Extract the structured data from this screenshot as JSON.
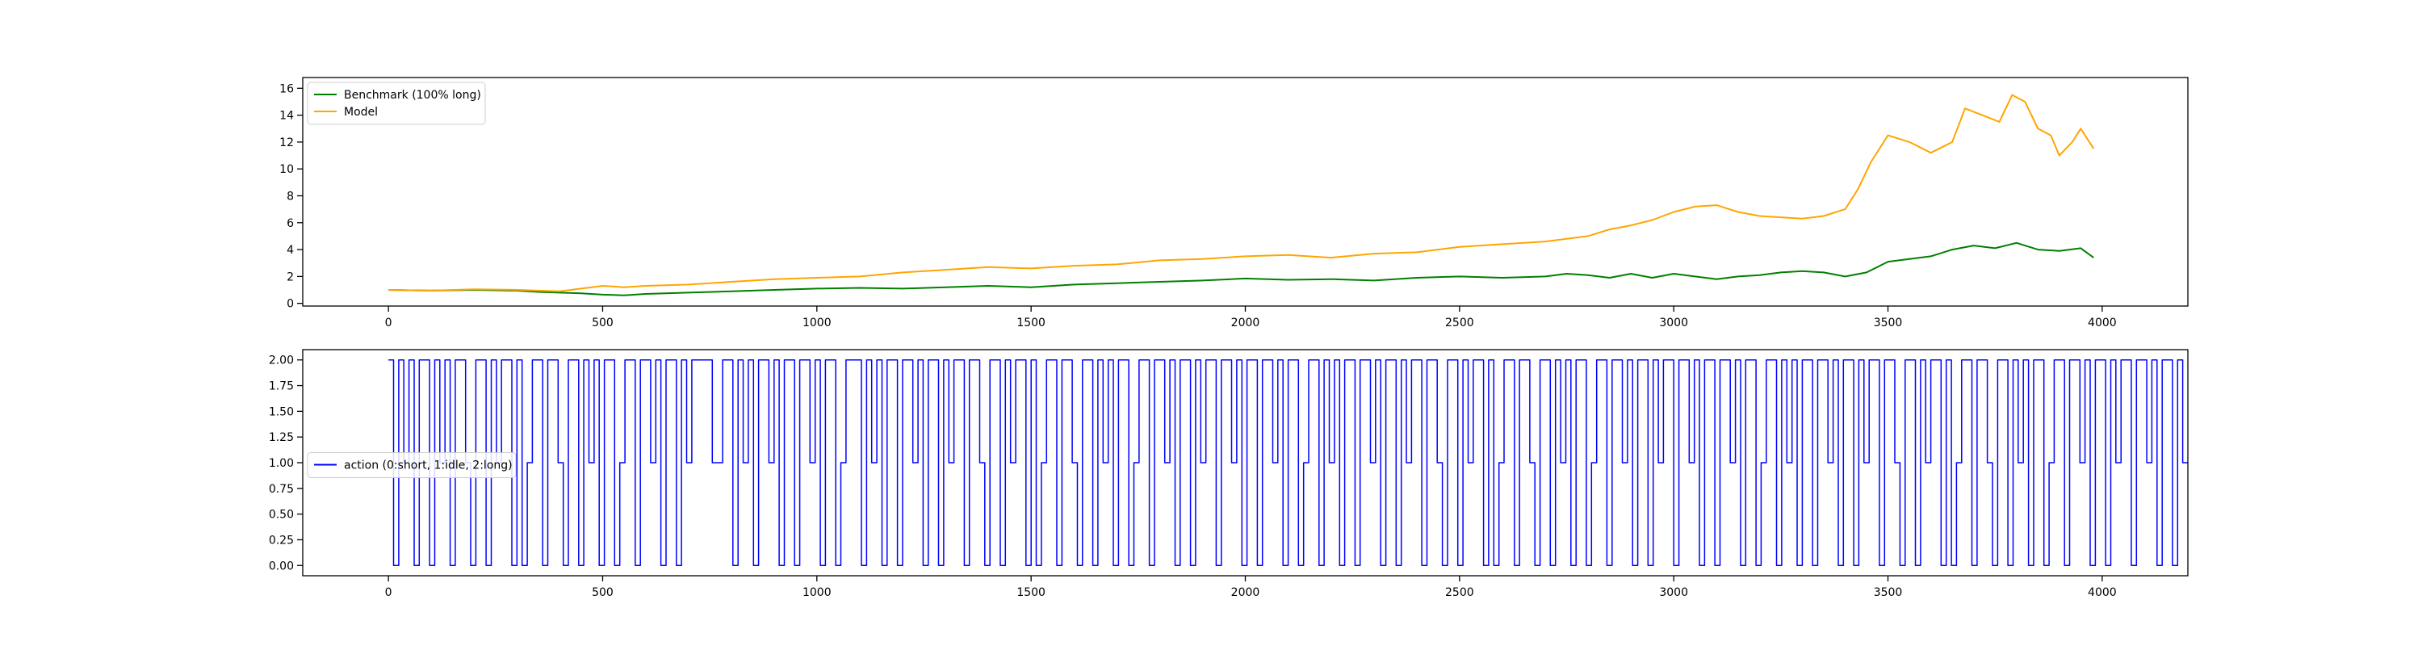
{
  "chart_data": [
    {
      "type": "line",
      "title": "",
      "xlabel": "",
      "ylabel": "",
      "xlim": [
        -200,
        4200
      ],
      "ylim": [
        -0.2,
        16.8
      ],
      "xticks": [
        0,
        500,
        1000,
        1500,
        2000,
        2500,
        3000,
        3500,
        4000
      ],
      "yticks": [
        0,
        2,
        4,
        6,
        8,
        10,
        12,
        14,
        16
      ],
      "legend": {
        "placement": "upper-left"
      },
      "grid": false,
      "series": [
        {
          "name": "Benchmark (100% long)",
          "color": "#008000",
          "x": [
            0,
            100,
            200,
            300,
            350,
            400,
            450,
            500,
            550,
            600,
            700,
            800,
            900,
            1000,
            1100,
            1200,
            1300,
            1400,
            1500,
            1600,
            1700,
            1800,
            1900,
            2000,
            2100,
            2200,
            2300,
            2400,
            2500,
            2600,
            2700,
            2750,
            2800,
            2850,
            2900,
            2950,
            3000,
            3050,
            3100,
            3150,
            3200,
            3250,
            3300,
            3350,
            3400,
            3450,
            3500,
            3550,
            3600,
            3650,
            3700,
            3750,
            3800,
            3850,
            3900,
            3950,
            3980
          ],
          "y": [
            1.0,
            0.95,
            1.0,
            0.95,
            0.85,
            0.8,
            0.75,
            0.65,
            0.6,
            0.7,
            0.8,
            0.9,
            1.0,
            1.1,
            1.15,
            1.1,
            1.2,
            1.3,
            1.2,
            1.4,
            1.5,
            1.6,
            1.7,
            1.85,
            1.75,
            1.8,
            1.7,
            1.9,
            2.0,
            1.9,
            2.0,
            2.2,
            2.1,
            1.9,
            2.2,
            1.9,
            2.2,
            2.0,
            1.8,
            2.0,
            2.1,
            2.3,
            2.4,
            2.3,
            2.0,
            2.3,
            3.1,
            3.3,
            3.5,
            4.0,
            4.3,
            4.1,
            4.5,
            4.0,
            3.9,
            4.1,
            3.4
          ]
        },
        {
          "name": "Model",
          "color": "#ffa500",
          "x": [
            0,
            100,
            200,
            300,
            400,
            450,
            500,
            550,
            600,
            700,
            800,
            900,
            1000,
            1100,
            1200,
            1300,
            1400,
            1500,
            1600,
            1700,
            1800,
            1900,
            2000,
            2100,
            2200,
            2300,
            2400,
            2500,
            2600,
            2700,
            2750,
            2800,
            2850,
            2900,
            2950,
            3000,
            3050,
            3100,
            3150,
            3200,
            3250,
            3300,
            3350,
            3400,
            3430,
            3460,
            3500,
            3550,
            3600,
            3650,
            3680,
            3720,
            3760,
            3790,
            3820,
            3850,
            3880,
            3900,
            3930,
            3950,
            3980
          ],
          "y": [
            1.0,
            0.95,
            1.05,
            1.0,
            0.9,
            1.1,
            1.3,
            1.2,
            1.3,
            1.4,
            1.6,
            1.8,
            1.9,
            2.0,
            2.3,
            2.5,
            2.7,
            2.6,
            2.8,
            2.9,
            3.2,
            3.3,
            3.5,
            3.6,
            3.4,
            3.7,
            3.8,
            4.2,
            4.4,
            4.6,
            4.8,
            5.0,
            5.5,
            5.8,
            6.2,
            6.8,
            7.2,
            7.3,
            6.8,
            6.5,
            6.4,
            6.3,
            6.5,
            7.0,
            8.5,
            10.5,
            12.5,
            12.0,
            11.2,
            12.0,
            14.5,
            14.0,
            13.5,
            15.5,
            15.0,
            13.0,
            12.5,
            11.0,
            12.0,
            13.0,
            11.5
          ]
        }
      ]
    },
    {
      "type": "line",
      "title": "",
      "xlabel": "",
      "ylabel": "",
      "xlim": [
        -200,
        4200
      ],
      "ylim": [
        -0.1,
        2.1
      ],
      "xticks": [
        0,
        500,
        1000,
        1500,
        2000,
        2500,
        3000,
        3500,
        4000
      ],
      "yticks": [
        0.0,
        0.25,
        0.5,
        0.75,
        1.0,
        1.25,
        1.5,
        1.75,
        2.0
      ],
      "ytick_labels": [
        "0.00",
        "0.25",
        "0.50",
        "0.75",
        "1.00",
        "1.25",
        "1.50",
        "1.75",
        "2.00"
      ],
      "legend": {
        "placement": "center-left"
      },
      "grid": false,
      "series": [
        {
          "name": "action (0:short, 1:idle, 2:long)",
          "color": "#0000ff",
          "x_start": 0,
          "x_step": 12,
          "values": [
            2,
            0,
            2,
            1,
            2,
            0,
            2,
            2,
            0,
            2,
            1,
            2,
            0,
            2,
            2,
            1,
            0,
            2,
            2,
            0,
            2,
            1,
            2,
            2,
            0,
            2,
            0,
            1,
            2,
            2,
            0,
            2,
            2,
            1,
            0,
            2,
            2,
            0,
            2,
            1,
            2,
            0,
            2,
            2,
            0,
            1,
            2,
            2,
            0,
            2,
            2,
            1,
            2,
            0,
            2,
            2,
            0,
            2,
            1,
            2,
            2,
            2,
            2,
            1,
            1,
            2,
            2,
            0,
            2,
            1,
            2,
            0,
            2,
            2,
            1,
            2,
            0,
            2,
            2,
            0,
            2,
            2,
            1,
            2,
            0,
            2,
            2,
            0,
            1,
            2,
            2,
            2,
            0,
            2,
            1,
            2,
            0,
            2,
            2,
            0,
            2,
            2,
            1,
            2,
            0,
            2,
            2,
            0,
            2,
            1,
            2,
            2,
            0,
            2,
            2,
            1,
            0,
            2,
            2,
            0,
            2,
            1,
            2,
            2,
            0,
            2,
            0,
            1,
            2,
            2,
            0,
            2,
            2,
            1,
            0,
            2,
            2,
            0,
            2,
            1,
            2,
            0,
            2,
            2,
            0,
            1,
            2,
            2,
            0,
            2,
            2,
            1,
            2,
            0,
            2,
            2,
            0,
            2,
            1,
            2,
            2,
            0,
            2,
            2,
            1,
            2,
            0,
            2,
            2,
            0,
            2,
            2,
            1,
            2,
            0,
            2,
            2,
            0,
            1,
            2,
            2,
            0,
            2,
            1,
            2,
            0,
            2,
            2,
            0,
            2,
            2,
            1,
            2,
            0,
            2,
            2,
            0,
            2,
            1,
            2,
            2,
            0,
            2,
            2,
            1,
            0,
            2,
            2,
            0,
            2,
            1,
            2,
            2,
            0,
            2,
            0,
            1,
            2,
            2,
            0,
            2,
            2,
            1,
            0,
            2,
            2,
            0,
            2,
            1,
            2,
            0,
            2,
            2,
            0,
            1,
            2,
            2,
            0,
            2,
            2,
            1,
            2,
            0,
            2,
            2,
            0,
            2,
            1,
            2,
            2,
            0,
            2,
            2,
            1,
            2,
            0,
            2,
            2,
            0,
            2,
            2,
            1,
            2,
            0,
            2,
            2,
            0,
            1,
            2,
            2,
            0,
            2,
            1,
            2,
            0,
            2,
            2,
            0,
            2,
            2,
            1,
            2,
            0,
            2,
            2,
            0,
            2,
            1,
            2,
            2,
            0,
            2,
            2,
            1,
            0,
            2,
            2,
            0,
            2,
            1,
            2,
            2,
            0,
            2,
            0,
            1,
            2,
            2,
            0,
            2,
            2,
            1,
            0,
            2,
            2,
            0,
            2,
            1,
            2,
            0,
            2,
            2,
            0,
            1,
            2,
            2,
            0,
            2,
            2,
            1,
            2,
            0,
            2,
            2,
            0,
            2,
            1,
            2,
            2,
            0,
            2,
            2,
            1,
            2,
            0,
            2,
            2,
            0,
            2,
            1,
            1
          ]
        }
      ]
    }
  ]
}
